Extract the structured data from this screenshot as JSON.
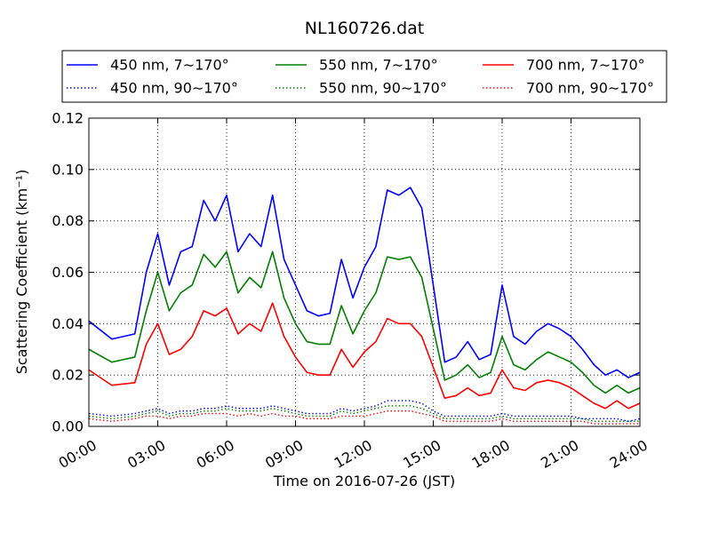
{
  "chart_data": {
    "type": "line",
    "title": "NL160726.dat",
    "xlabel": "Time on 2016-07-26 (JST)",
    "ylabel": "Scattering Coefficient (km⁻¹)",
    "xlim": [
      "00:00",
      "24:00"
    ],
    "ylim": [
      0,
      0.12
    ],
    "grid": true,
    "legend_position": "top (above plot)",
    "x_ticks": [
      "00:00",
      "03:00",
      "06:00",
      "09:00",
      "12:00",
      "15:00",
      "18:00",
      "21:00",
      "24:00"
    ],
    "y_ticks": [
      "0.00",
      "0.02",
      "0.04",
      "0.06",
      "0.08",
      "0.10",
      "0.12"
    ],
    "x_hours": [
      0,
      1,
      2,
      2.5,
      3,
      3.5,
      4,
      4.5,
      5,
      5.5,
      6,
      6.5,
      7,
      7.5,
      8,
      8.5,
      9,
      9.5,
      10,
      10.5,
      11,
      11.5,
      12,
      12.5,
      13,
      13.5,
      14,
      14.5,
      15,
      15.5,
      16,
      16.5,
      17,
      17.5,
      18,
      18.5,
      19,
      19.5,
      20,
      20.5,
      21,
      21.5,
      22,
      22.5,
      23,
      23.5,
      24
    ],
    "series": [
      {
        "name": "450 nm, 7∼170°",
        "color": "#0000ff",
        "style": "solid",
        "values": [
          0.041,
          0.034,
          0.036,
          0.06,
          0.075,
          0.055,
          0.068,
          0.07,
          0.088,
          0.08,
          0.09,
          0.068,
          0.075,
          0.07,
          0.09,
          0.065,
          0.055,
          0.045,
          0.043,
          0.044,
          0.065,
          0.05,
          0.062,
          0.07,
          0.092,
          0.09,
          0.093,
          0.085,
          0.055,
          0.025,
          0.027,
          0.033,
          0.026,
          0.028,
          0.055,
          0.035,
          0.032,
          0.037,
          0.04,
          0.038,
          0.035,
          0.03,
          0.024,
          0.02,
          0.022,
          0.019,
          0.021
        ]
      },
      {
        "name": "450 nm, 90∼170°",
        "color": "#0000ff",
        "style": "dotted",
        "values": [
          0.005,
          0.004,
          0.005,
          0.006,
          0.007,
          0.005,
          0.006,
          0.006,
          0.007,
          0.007,
          0.008,
          0.007,
          0.007,
          0.007,
          0.008,
          0.007,
          0.006,
          0.005,
          0.005,
          0.005,
          0.007,
          0.006,
          0.007,
          0.008,
          0.01,
          0.01,
          0.01,
          0.009,
          0.006,
          0.004,
          0.004,
          0.004,
          0.004,
          0.004,
          0.005,
          0.004,
          0.004,
          0.004,
          0.004,
          0.004,
          0.004,
          0.003,
          0.003,
          0.003,
          0.003,
          0.002,
          0.003
        ]
      },
      {
        "name": "550 nm, 7∼170°",
        "color": "#008000",
        "style": "solid",
        "values": [
          0.03,
          0.025,
          0.027,
          0.045,
          0.06,
          0.045,
          0.052,
          0.055,
          0.067,
          0.062,
          0.068,
          0.052,
          0.058,
          0.054,
          0.068,
          0.05,
          0.04,
          0.033,
          0.032,
          0.032,
          0.047,
          0.036,
          0.045,
          0.052,
          0.066,
          0.065,
          0.066,
          0.058,
          0.038,
          0.018,
          0.02,
          0.024,
          0.019,
          0.021,
          0.035,
          0.024,
          0.022,
          0.026,
          0.029,
          0.027,
          0.025,
          0.021,
          0.016,
          0.013,
          0.016,
          0.013,
          0.015
        ]
      },
      {
        "name": "550 nm, 90∼170°",
        "color": "#008000",
        "style": "dotted",
        "values": [
          0.004,
          0.003,
          0.004,
          0.005,
          0.006,
          0.004,
          0.005,
          0.005,
          0.006,
          0.006,
          0.007,
          0.006,
          0.006,
          0.006,
          0.007,
          0.006,
          0.005,
          0.004,
          0.004,
          0.004,
          0.006,
          0.005,
          0.006,
          0.007,
          0.008,
          0.008,
          0.008,
          0.007,
          0.005,
          0.003,
          0.003,
          0.003,
          0.003,
          0.003,
          0.004,
          0.003,
          0.003,
          0.003,
          0.003,
          0.003,
          0.003,
          0.003,
          0.002,
          0.002,
          0.002,
          0.002,
          0.002
        ]
      },
      {
        "name": "700 nm, 7∼170°",
        "color": "#ff0000",
        "style": "solid",
        "values": [
          0.022,
          0.016,
          0.017,
          0.032,
          0.04,
          0.028,
          0.03,
          0.035,
          0.045,
          0.043,
          0.046,
          0.036,
          0.04,
          0.037,
          0.048,
          0.035,
          0.027,
          0.021,
          0.02,
          0.02,
          0.03,
          0.023,
          0.029,
          0.033,
          0.042,
          0.04,
          0.04,
          0.035,
          0.023,
          0.011,
          0.012,
          0.015,
          0.012,
          0.013,
          0.022,
          0.015,
          0.014,
          0.017,
          0.018,
          0.017,
          0.015,
          0.012,
          0.009,
          0.007,
          0.01,
          0.007,
          0.009
        ]
      },
      {
        "name": "700 nm, 90∼170°",
        "color": "#ff0000",
        "style": "dotted",
        "values": [
          0.003,
          0.002,
          0.003,
          0.004,
          0.004,
          0.003,
          0.004,
          0.004,
          0.005,
          0.005,
          0.005,
          0.004,
          0.005,
          0.004,
          0.005,
          0.004,
          0.004,
          0.003,
          0.003,
          0.003,
          0.004,
          0.004,
          0.004,
          0.005,
          0.006,
          0.006,
          0.006,
          0.005,
          0.004,
          0.002,
          0.002,
          0.002,
          0.002,
          0.002,
          0.003,
          0.002,
          0.002,
          0.002,
          0.002,
          0.002,
          0.002,
          0.002,
          0.001,
          0.001,
          0.001,
          0.001,
          0.001
        ]
      }
    ]
  }
}
